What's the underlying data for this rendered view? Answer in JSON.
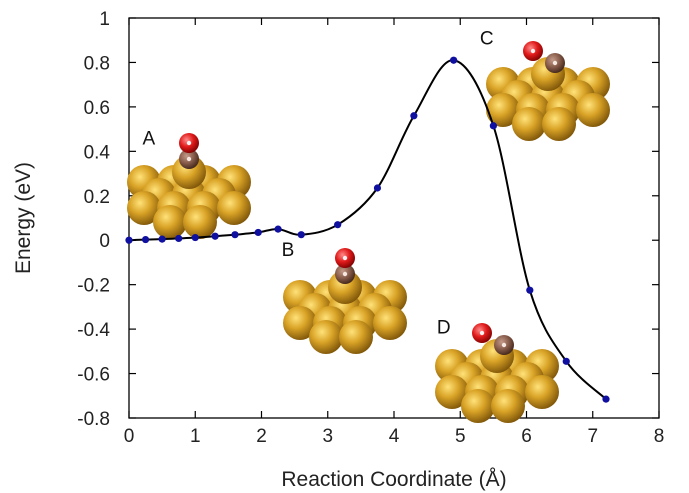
{
  "chart_data": {
    "type": "line",
    "title": "",
    "xlabel": "Reaction Coordinate (Å)",
    "ylabel": "Energy (eV)",
    "xlim": [
      0,
      8
    ],
    "ylim": [
      -0.8,
      1.0
    ],
    "x_ticks": [
      "0",
      "1",
      "2",
      "3",
      "4",
      "5",
      "6",
      "7",
      "8"
    ],
    "y_ticks": [
      "1",
      "0.8",
      "0.6",
      "0.4",
      "0.2",
      "0",
      "-0.2",
      "-0.4",
      "-0.6",
      "-0.8"
    ],
    "grid": false,
    "series": [
      {
        "points": [
          [
            0.0,
            0.0
          ],
          [
            0.25,
            0.003
          ],
          [
            0.5,
            0.005
          ],
          [
            0.75,
            0.008
          ],
          [
            1.0,
            0.012
          ],
          [
            1.3,
            0.018
          ],
          [
            1.6,
            0.025
          ],
          [
            1.95,
            0.035
          ],
          [
            2.25,
            0.05
          ],
          [
            2.6,
            0.025
          ],
          [
            3.15,
            0.07
          ],
          [
            3.75,
            0.235
          ],
          [
            4.3,
            0.56
          ],
          [
            4.9,
            0.81
          ],
          [
            5.5,
            0.515
          ],
          [
            6.05,
            -0.225
          ],
          [
            6.6,
            -0.545
          ],
          [
            7.2,
            -0.715
          ]
        ]
      }
    ],
    "annotations": [
      {
        "label": "A",
        "x": 0.3,
        "y": 0.43
      },
      {
        "label": "B",
        "x": 2.4,
        "y": -0.07
      },
      {
        "label": "C",
        "x": 5.4,
        "y": 0.88
      },
      {
        "label": "D",
        "x": 4.75,
        "y": -0.42
      }
    ]
  },
  "structures": [
    {
      "label": "A",
      "top_atom": "O",
      "bound_atom": "C",
      "slab": "Au",
      "adsorption": "top"
    },
    {
      "label": "B",
      "top_atom": "O",
      "bound_atom": "C",
      "slab": "Au",
      "adsorption": "top"
    },
    {
      "label": "C",
      "top_atom": "O",
      "bound_atom": "C",
      "slab": "Au",
      "adsorption": "shifted"
    },
    {
      "label": "D",
      "top_atom": "O",
      "bound_atom": "C",
      "slab": "Au",
      "adsorption": "shifted"
    }
  ],
  "colors": {
    "gold": "#c8941e",
    "carbon": "#7a5040",
    "oxygen": "#dd1515",
    "points": "#1010a0",
    "curve": "#000000"
  }
}
